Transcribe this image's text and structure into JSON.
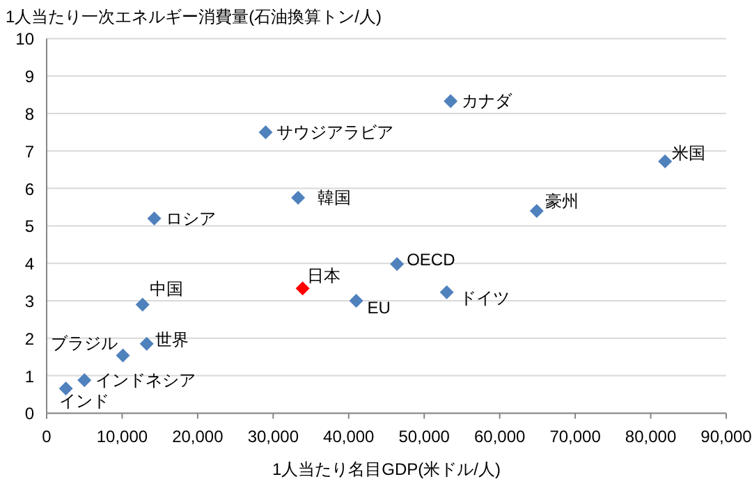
{
  "chart_data": {
    "type": "scatter",
    "ylabel": "1人当たり一次エネルギー消費量(石油換算トン/人)",
    "xlabel": "1人当たり名目GDP(米ドル/人)",
    "xlim": [
      0,
      90000
    ],
    "ylim": [
      0,
      10
    ],
    "xticks": [
      0,
      {
        "value": 10000,
        "label": "10,000"
      },
      {
        "value": 20000,
        "label": "20,000"
      },
      {
        "value": 30000,
        "label": "30,000"
      },
      {
        "value": 40000,
        "label": "40,000"
      },
      {
        "value": 50000,
        "label": "50,000"
      },
      {
        "value": 60000,
        "label": "60,000"
      },
      {
        "value": 70000,
        "label": "70,000"
      },
      {
        "value": 80000,
        "label": "80,000"
      },
      {
        "value": 90000,
        "label": "90,000"
      }
    ],
    "yticks": [
      0,
      1,
      2,
      3,
      4,
      5,
      6,
      7,
      8,
      9,
      10
    ],
    "grid": "y",
    "marker": "diamond",
    "series": [
      {
        "name": "インド",
        "color": "#4f81bd",
        "x": [
          2550
        ],
        "values": [
          0.66
        ]
      },
      {
        "name": "インドネシア",
        "color": "#4f81bd",
        "x": [
          5000
        ],
        "values": [
          0.88
        ]
      },
      {
        "name": "ブラジル",
        "color": "#4f81bd",
        "x": [
          10100
        ],
        "values": [
          1.54
        ]
      },
      {
        "name": "世界",
        "color": "#4f81bd",
        "x": [
          13250
        ],
        "values": [
          1.85
        ]
      },
      {
        "name": "中国",
        "color": "#4f81bd",
        "x": [
          12700
        ],
        "values": [
          2.9
        ]
      },
      {
        "name": "ロシア",
        "color": "#4f81bd",
        "x": [
          14250
        ],
        "values": [
          5.2
        ]
      },
      {
        "name": "韓国",
        "color": "#4f81bd",
        "x": [
          33300
        ],
        "values": [
          5.75
        ]
      },
      {
        "name": "日本",
        "color": "#ff0000",
        "x": [
          33900
        ],
        "values": [
          3.33
        ]
      },
      {
        "name": "EU",
        "color": "#4f81bd",
        "x": [
          41000
        ],
        "values": [
          3.0
        ]
      },
      {
        "name": "カナダ",
        "color": "#4f81bd",
        "x": [
          53500
        ],
        "values": [
          8.33
        ]
      },
      {
        "name": "サウジアラビア",
        "color": "#4f81bd",
        "x": [
          29000
        ],
        "values": [
          7.5
        ]
      },
      {
        "name": "米国",
        "color": "#4f81bd",
        "x": [
          81900
        ],
        "values": [
          6.72
        ]
      },
      {
        "name": "豪州",
        "color": "#4f81bd",
        "x": [
          64900
        ],
        "values": [
          5.4
        ]
      },
      {
        "name": "OECD",
        "color": "#4f81bd",
        "x": [
          46400
        ],
        "values": [
          3.98
        ]
      },
      {
        "name": "ドイツ",
        "color": "#4f81bd",
        "x": [
          52990
        ],
        "values": [
          3.23
        ]
      }
    ]
  }
}
